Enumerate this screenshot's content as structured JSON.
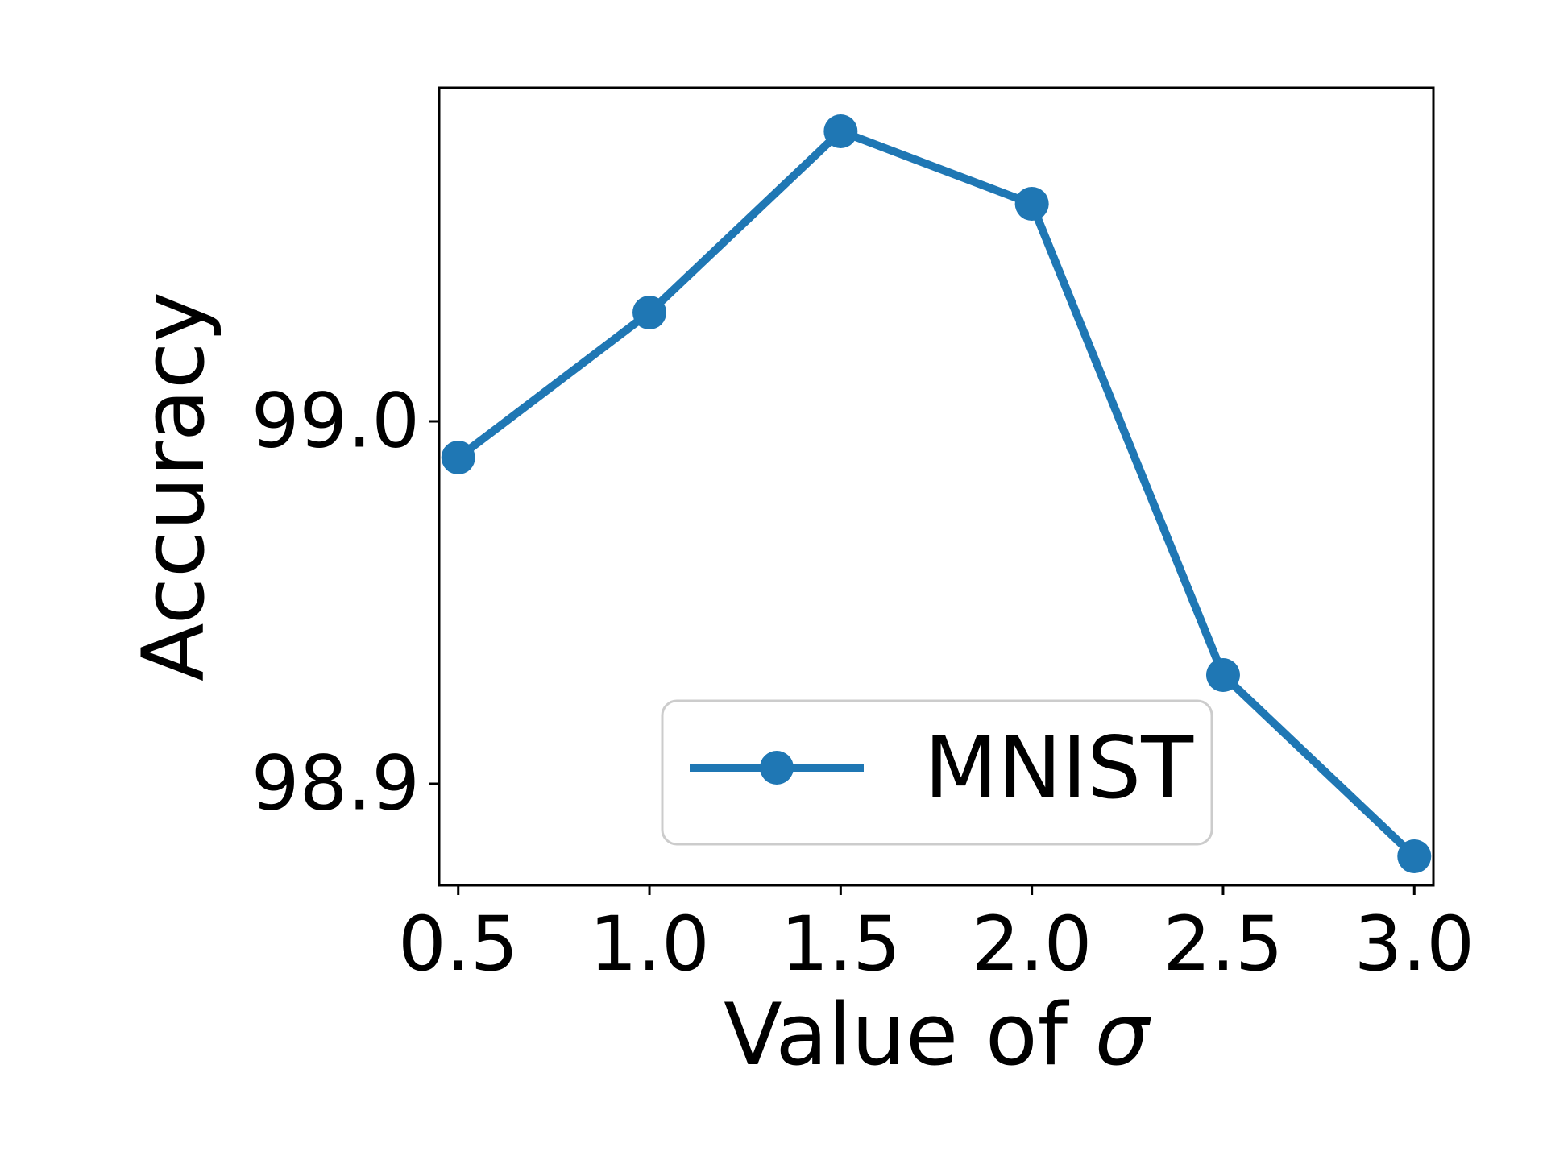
{
  "chart_data": {
    "type": "line",
    "title": "",
    "xlabel": "Value of",
    "xlabel_symbol": "σ",
    "ylabel": "Accuracy",
    "x": [
      0.5,
      1.0,
      1.5,
      2.0,
      2.5,
      3.0
    ],
    "x_tick_labels": [
      "0.5",
      "1.0",
      "1.5",
      "2.0",
      "2.5",
      "3.0"
    ],
    "y_ticks": [
      98.9,
      99.0
    ],
    "y_tick_labels": [
      "98.9",
      "99.0"
    ],
    "xlim": [
      0.45,
      3.05
    ],
    "ylim": [
      98.872,
      99.092
    ],
    "grid": false,
    "legend_position": "lower-right",
    "series": [
      {
        "name": "MNIST",
        "color": "#1f77b4",
        "marker": "circle",
        "values": [
          98.99,
          99.03,
          99.08,
          99.06,
          98.93,
          98.88
        ]
      }
    ]
  }
}
